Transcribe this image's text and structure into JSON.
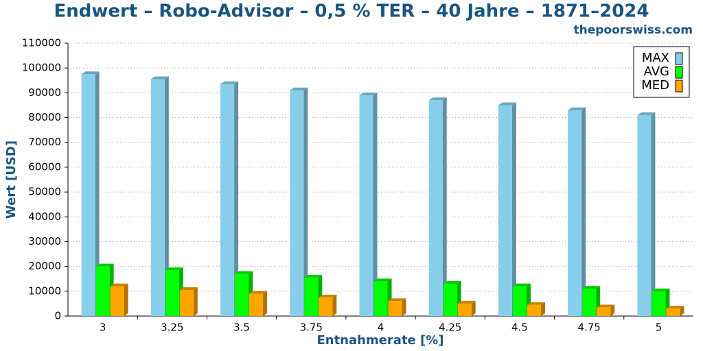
{
  "chart_data": {
    "type": "bar3d",
    "title": "Endwert – Robo-Advisor – 0,5 % TER – 40 Jahre – 1871–2024",
    "subtitle": "thepoorswiss.com",
    "x_label": "Entnahmerate [%]",
    "y_label": "Wert [USD]",
    "categories": [
      "3",
      "3.25",
      "3.5",
      "3.75",
      "4",
      "4.25",
      "4.5",
      "4.75",
      "5"
    ],
    "series": [
      {
        "name": "MAX",
        "color": "#87ceeb",
        "values": [
          97500,
          95500,
          93500,
          91000,
          89000,
          87000,
          85000,
          83000,
          81000
        ]
      },
      {
        "name": "AVG",
        "color": "#00ff00",
        "values": [
          20000,
          18500,
          17000,
          15500,
          14000,
          13000,
          12000,
          11000,
          10000
        ]
      },
      {
        "name": "MED",
        "color": "#ffa500",
        "values": [
          12000,
          10500,
          9000,
          7500,
          6000,
          5000,
          4500,
          3500,
          3000
        ]
      }
    ],
    "ylim": [
      0,
      110000
    ],
    "yticks": [
      0,
      10000,
      20000,
      30000,
      40000,
      50000,
      60000,
      70000,
      80000,
      90000,
      100000,
      110000
    ],
    "grid": true,
    "legend": "top-right"
  }
}
